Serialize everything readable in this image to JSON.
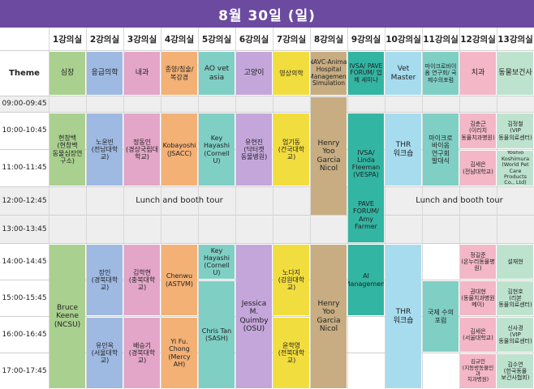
{
  "title": "8월 30일 (일)",
  "theme_label": "Theme",
  "rooms": [
    "1강의실",
    "2강의실",
    "3강의실",
    "4강의실",
    "5강의실",
    "6강의실",
    "7강의실",
    "8강의실",
    "9강의실",
    "10강의실",
    "11강의실",
    "12강의실",
    "13강의실"
  ],
  "times": [
    "09:00-09:45",
    "10:00-10:45",
    "11:00-11:45",
    "12:00-12:45",
    "13:00-13:45",
    "14:00-14:45",
    "15:00-15:45",
    "16:00-16:45",
    "17:00-17:45"
  ],
  "themes": [
    "심장",
    "응급의학",
    "내과",
    "종양/침술/복강경",
    "AO vet asia",
    "고양이",
    "영상의학",
    "NAVC-Animal Hospital Management Simulation",
    "IVSA/ PAVE FORUM/ 업체 세미나",
    "Vet Master",
    "마이크로바이옴 연구회/ 국제수의포럼",
    "치과",
    "동물보건사"
  ],
  "lunch_left": "Lunch and booth tour",
  "lunch_right": "Lunch and booth tour",
  "sessions": {
    "r1_am": "현창백\n(현창백\n동물심장연구소)",
    "r2_am": "노윤빈\n(전남대학교)",
    "r3_am": "정동인\n(경상국립대학교)",
    "r4_am": "Kobayoshi\n(JSACC)",
    "r5_am": "Key Hayashi\n(Cornell U)",
    "r6_am": "유현진\n(닥터캣\n동물병원)",
    "r7_am": "엄기동\n(건국대학교)",
    "r8_am": "Henry Yoo\nGarcia\nNicol",
    "r9_am": "IVSA/\nLinda\nFleeman\n(VESPA)",
    "r10_am": "THR\n워크숍",
    "r11_am": "마이크로\n바이옴\n연구회\n발대식",
    "r12_am1": "김춘근\n(이리치\n동물치과병원)",
    "r12_am2": "김세은\n(전남대학교)",
    "r13_am1": "김정철\n(VIP\n동물의료센터)",
    "r13_am2": "Yoshio\nKoshimura\n(World Pet Care\nProducts Co., Ltd)",
    "r9_noon": "PAVE\nFORUM/\nAmy Farmer",
    "r1_pm": "Bruce Keene\n(NCSU)",
    "r2_pm1": "장인\n(경북대학교)",
    "r2_pm2": "유민옥\n(서울대학교)",
    "r3_pm1": "김학현\n(충북대학교)",
    "r3_pm2": "배승기\n(경북대학교)",
    "r4_pm1": "Chenwu\n(ASTVM)",
    "r4_pm2": "Yi Fu. Chong\n(Mercy AH)",
    "r5_pm1": "Key Hayashi\n(Cornell U)",
    "r5_pm2": "Chris Tan\n(SASH)",
    "r6_pm": "Jessica M.\nQuimby\n(OSU)",
    "r7_pm1": "노다지\n(강원대학교)",
    "r7_pm2": "윤학영\n(전북대학교)",
    "r8_pm": "Henry Yoo\nGarcia\nNicol",
    "r9_pm": "AI\nManagement",
    "r10_pm": "THR\n워크숍",
    "r11_pm": "국제 수의\n포럼",
    "r12_pm1": "정길준\n(온누리동물병원)",
    "r12_pm2": "권대현\n(동물치과병원\n메이)",
    "r12_pm3": "김세은\n(서울대학교)",
    "r12_pm4": "김규민\n(지동방동물인과\n치과병원)",
    "r13_pm1": "설재현",
    "r13_pm2": "김현호\n(리본\n동물의료센터)",
    "r13_pm3": "신사경\n(VIP\n동물의료센터)",
    "r13_pm4": "김수연\n(한국동물\n보건사협회)"
  },
  "colors": {
    "title_bg": "#6b4aa0",
    "band": "#eeeeee"
  }
}
